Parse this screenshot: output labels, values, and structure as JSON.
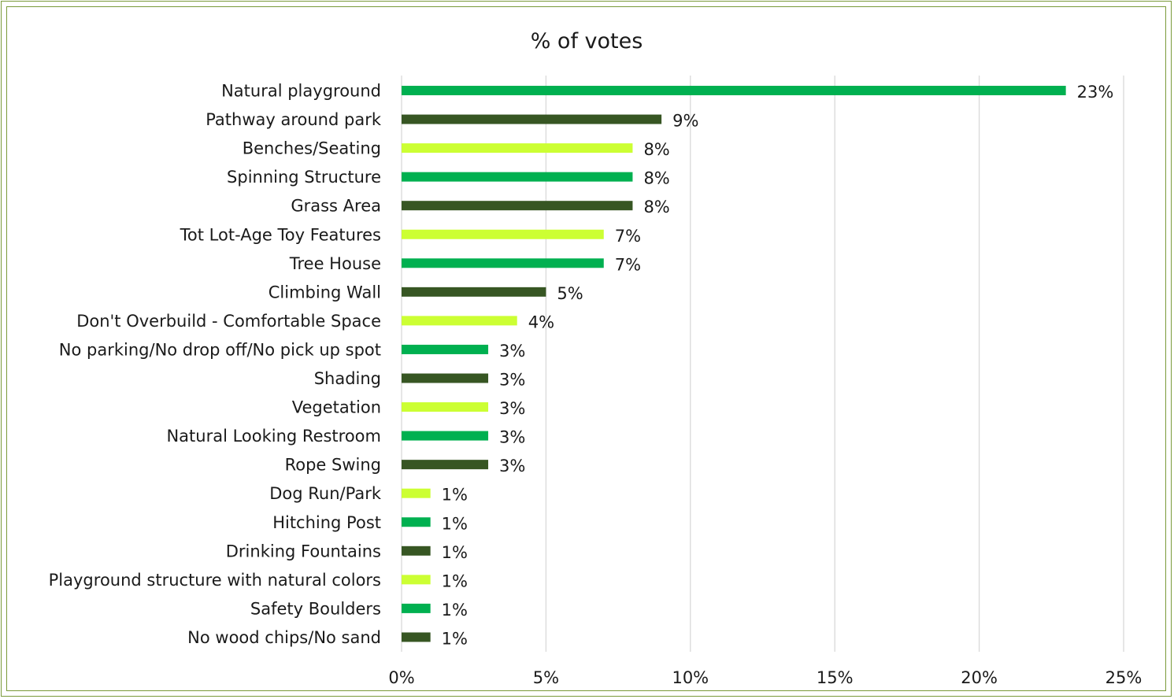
{
  "chart_data": {
    "type": "bar",
    "orientation": "horizontal",
    "title": "% of votes",
    "xlabel": "",
    "ylabel": "",
    "xlim": [
      0,
      25
    ],
    "x_ticks": [
      "0%",
      "5%",
      "10%",
      "15%",
      "20%",
      "25%"
    ],
    "x_tick_values": [
      0,
      5,
      10,
      15,
      20,
      25
    ],
    "grid": "vertical",
    "legend": "none",
    "categories": [
      "Natural playground",
      "Pathway around park",
      "Benches/Seating",
      "Spinning Structure",
      "Grass Area",
      "Tot Lot-Age Toy Features",
      "Tree House",
      "Climbing Wall",
      "Don't Overbuild - Comfortable Space",
      "No parking/No drop off/No pick up spot",
      "Shading",
      "Vegetation",
      "Natural Looking Restroom",
      "Rope Swing",
      "Dog Run/Park",
      "Hitching Post",
      "Drinking Fountains",
      "Playground structure with natural colors",
      "Safety Boulders",
      "No wood chips/No sand"
    ],
    "values": [
      23,
      9,
      8,
      8,
      8,
      7,
      7,
      5,
      4,
      3,
      3,
      3,
      3,
      3,
      1,
      1,
      1,
      1,
      1,
      1
    ],
    "value_labels": [
      "23%",
      "9%",
      "8%",
      "8%",
      "8%",
      "7%",
      "7%",
      "5%",
      "4%",
      "3%",
      "3%",
      "3%",
      "3%",
      "3%",
      "1%",
      "1%",
      "1%",
      "1%",
      "1%",
      "1%"
    ],
    "bar_colors": [
      "#00b050",
      "#375623",
      "#ccff33",
      "#00b050",
      "#375623",
      "#ccff33",
      "#00b050",
      "#375623",
      "#ccff33",
      "#00b050",
      "#375623",
      "#ccff33",
      "#00b050",
      "#375623",
      "#ccff33",
      "#00b050",
      "#375623",
      "#ccff33",
      "#00b050",
      "#375623"
    ]
  },
  "colors": {
    "frame": "#7a9a3a",
    "grid": "#d9d9d9",
    "text": "#1a1a1a"
  }
}
